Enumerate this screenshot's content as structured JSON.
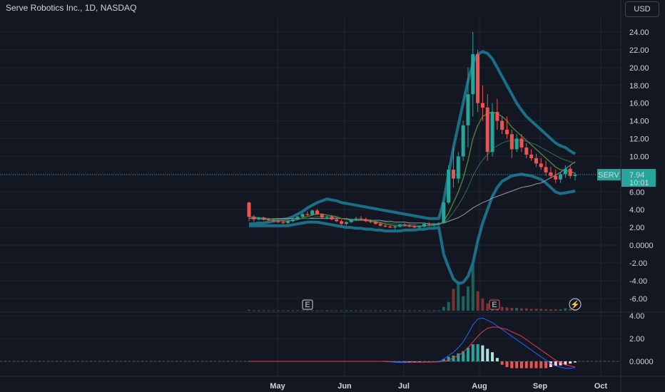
{
  "header": {
    "title": "Serve Robotics Inc., 1D, NASDAQ",
    "currency_label": "USD"
  },
  "price_tag": {
    "symbol": "SERV",
    "price": "7.94",
    "countdown": "10:01"
  },
  "colors": {
    "bg": "#131722",
    "grid": "#1f2433",
    "up": "#26a69a",
    "down": "#ef5350",
    "band": "#1a6f87",
    "ma1": "#4f7a3a",
    "ma2": "#2a6f60",
    "ma3": "#9598a1",
    "macd": "#2962ff",
    "signal": "#f23645"
  },
  "markers": [
    "E",
    "E",
    "⚡"
  ],
  "chart_data": [
    {
      "type": "candlestick",
      "title": "Serve Robotics Inc., 1D, NASDAQ",
      "y_ticks": [
        "24.00",
        "22.00",
        "20.00",
        "18.00",
        "16.00",
        "14.00",
        "12.00",
        "10.00",
        "8.00",
        "6.00",
        "4.00",
        "2.00",
        "0.0000",
        "-2.00",
        "-4.00",
        "-6.00"
      ],
      "x_ticks": [
        "May",
        "Jun",
        "Jul",
        "Aug",
        "Sep",
        "Oct"
      ],
      "ylim": [
        -7,
        25
      ],
      "last_price": 7.94,
      "candles": [
        [
          4.8,
          4.9,
          2.7,
          3.2
        ],
        [
          3.2,
          3.4,
          2.6,
          2.9
        ],
        [
          2.9,
          3.2,
          2.8,
          3.1
        ],
        [
          3.1,
          3.2,
          2.8,
          2.9
        ],
        [
          2.9,
          3.1,
          2.7,
          2.8
        ],
        [
          2.8,
          3.0,
          2.6,
          2.7
        ],
        [
          2.7,
          2.9,
          2.5,
          2.6
        ],
        [
          2.6,
          2.8,
          2.4,
          2.5
        ],
        [
          2.5,
          2.8,
          2.4,
          2.7
        ],
        [
          2.7,
          3.0,
          2.6,
          2.9
        ],
        [
          2.9,
          3.3,
          2.8,
          3.2
        ],
        [
          3.2,
          3.6,
          3.1,
          3.5
        ],
        [
          3.5,
          3.8,
          3.3,
          3.4
        ],
        [
          3.4,
          4.0,
          3.3,
          3.9
        ],
        [
          3.9,
          4.1,
          3.4,
          3.5
        ],
        [
          3.5,
          3.6,
          3.0,
          3.1
        ],
        [
          3.1,
          3.3,
          2.9,
          3.2
        ],
        [
          3.2,
          3.4,
          2.8,
          2.9
        ],
        [
          2.9,
          3.1,
          2.6,
          2.7
        ],
        [
          2.7,
          2.9,
          2.2,
          2.4
        ],
        [
          2.4,
          2.7,
          2.2,
          2.6
        ],
        [
          2.6,
          3.0,
          2.5,
          2.9
        ],
        [
          2.9,
          3.2,
          2.7,
          3.0
        ],
        [
          3.0,
          3.3,
          2.8,
          2.9
        ],
        [
          2.9,
          3.1,
          2.6,
          2.7
        ],
        [
          2.7,
          2.9,
          2.5,
          2.6
        ],
        [
          2.6,
          2.8,
          2.3,
          2.4
        ],
        [
          2.4,
          2.6,
          2.1,
          2.2
        ],
        [
          2.2,
          2.4,
          2.0,
          2.1
        ],
        [
          2.1,
          2.3,
          1.9,
          2.0
        ],
        [
          2.0,
          2.2,
          1.8,
          2.1
        ],
        [
          2.1,
          2.4,
          2.0,
          2.3
        ],
        [
          2.3,
          2.5,
          2.1,
          2.2
        ],
        [
          2.2,
          2.4,
          2.0,
          2.1
        ],
        [
          2.1,
          2.3,
          1.9,
          2.0
        ],
        [
          2.0,
          2.2,
          1.8,
          2.1
        ],
        [
          2.1,
          2.5,
          2.0,
          2.4
        ],
        [
          2.4,
          2.6,
          2.2,
          2.3
        ],
        [
          2.3,
          2.5,
          2.1,
          2.4
        ],
        [
          2.4,
          2.6,
          2.2,
          2.5
        ],
        [
          2.5,
          5.0,
          2.4,
          4.8
        ],
        [
          4.8,
          9.0,
          4.6,
          8.5
        ],
        [
          8.5,
          11.0,
          6.5,
          7.5
        ],
        [
          7.5,
          10.5,
          7.0,
          10.0
        ],
        [
          10.0,
          14.0,
          9.5,
          13.5
        ],
        [
          13.5,
          20.0,
          11.0,
          17.0
        ],
        [
          17.0,
          24.0,
          14.5,
          21.5
        ],
        [
          21.5,
          22.0,
          15.0,
          16.0
        ],
        [
          16.0,
          18.0,
          14.0,
          15.5
        ],
        [
          15.5,
          17.0,
          9.5,
          10.5
        ],
        [
          10.5,
          16.0,
          10.0,
          15.0
        ],
        [
          15.0,
          16.5,
          13.0,
          14.0
        ],
        [
          14.0,
          14.5,
          12.5,
          13.0
        ],
        [
          13.0,
          14.5,
          12.0,
          12.5
        ],
        [
          12.5,
          13.0,
          9.8,
          10.8
        ],
        [
          10.8,
          12.5,
          10.5,
          12.0
        ],
        [
          12.0,
          12.5,
          10.5,
          11.0
        ],
        [
          11.0,
          11.5,
          9.8,
          10.2
        ],
        [
          10.2,
          10.8,
          9.5,
          9.8
        ],
        [
          9.8,
          10.3,
          8.8,
          9.2
        ],
        [
          9.2,
          9.8,
          8.5,
          8.8
        ],
        [
          8.8,
          9.5,
          7.8,
          8.2
        ],
        [
          8.2,
          8.8,
          7.5,
          7.8
        ],
        [
          7.8,
          8.5,
          7.0,
          7.4
        ],
        [
          7.4,
          8.2,
          7.0,
          8.0
        ],
        [
          8.0,
          9.0,
          7.6,
          8.6
        ],
        [
          8.6,
          9.0,
          7.5,
          7.8
        ],
        [
          7.8,
          8.2,
          7.3,
          7.94
        ]
      ],
      "volume": [
        2,
        1,
        1,
        1,
        1,
        1,
        1,
        1,
        1,
        1,
        1,
        1,
        1,
        1,
        1,
        1,
        1,
        1,
        1,
        1,
        1,
        1,
        1,
        1,
        1,
        1,
        1,
        1,
        1,
        1,
        1,
        1,
        1,
        1,
        1,
        1,
        1,
        1,
        1,
        1,
        8,
        18,
        45,
        60,
        30,
        50,
        95,
        40,
        25,
        15,
        12,
        10,
        8,
        7,
        6,
        6,
        5,
        5,
        4,
        4,
        4,
        3,
        3,
        3,
        3,
        5,
        4,
        3
      ],
      "bands": {
        "upper": [
          2.4,
          2.4,
          2.5,
          2.5,
          2.6,
          2.7,
          2.8,
          2.9,
          3.0,
          3.2,
          3.5,
          3.8,
          4.2,
          4.5,
          4.8,
          5.0,
          5.2,
          5.1,
          5.0,
          4.8,
          4.7,
          4.6,
          4.5,
          4.4,
          4.3,
          4.2,
          4.1,
          4.0,
          3.9,
          3.8,
          3.7,
          3.6,
          3.5,
          3.4,
          3.3,
          3.2,
          3.1,
          3.0,
          3.0,
          3.0,
          5.0,
          8.0,
          11.0,
          13.5,
          16.0,
          18.5,
          20.5,
          21.5,
          21.8,
          21.6,
          21.0,
          20.0,
          19.0,
          18.0,
          17.0,
          16.0,
          15.2,
          14.5,
          14.0,
          13.5,
          13.0,
          12.5,
          12.0,
          11.5,
          11.2,
          11.0,
          10.6,
          10.3
        ],
        "lower": [
          2.2,
          2.2,
          2.2,
          2.2,
          2.2,
          2.2,
          2.2,
          2.2,
          2.2,
          2.3,
          2.4,
          2.5,
          2.6,
          2.6,
          2.6,
          2.5,
          2.4,
          2.3,
          2.2,
          2.1,
          2.0,
          2.0,
          1.9,
          1.9,
          1.8,
          1.8,
          1.7,
          1.7,
          1.6,
          1.6,
          1.6,
          1.6,
          1.7,
          1.7,
          1.7,
          1.8,
          1.8,
          1.9,
          1.9,
          2.0,
          -1.0,
          -2.5,
          -3.8,
          -4.3,
          -4.2,
          -3.5,
          -2.0,
          0.5,
          2.5,
          4.0,
          5.5,
          6.5,
          7.2,
          7.5,
          7.8,
          7.9,
          8.0,
          7.9,
          7.8,
          7.6,
          7.4,
          7.0,
          6.5,
          6.0,
          5.8,
          5.9,
          6.0,
          6.1
        ]
      },
      "ma_fast": [
        3.2,
        3.1,
        3.0,
        2.9,
        2.9,
        2.9,
        2.8,
        2.7,
        2.7,
        2.8,
        2.9,
        3.1,
        3.2,
        3.4,
        3.5,
        3.5,
        3.4,
        3.3,
        3.2,
        3.0,
        2.9,
        2.8,
        2.8,
        2.8,
        2.8,
        2.7,
        2.6,
        2.5,
        2.4,
        2.3,
        2.2,
        2.2,
        2.2,
        2.2,
        2.1,
        2.1,
        2.2,
        2.2,
        2.3,
        2.3,
        2.7,
        3.6,
        4.8,
        6.0,
        7.5,
        9.5,
        12.0,
        13.5,
        14.5,
        14.8,
        15.0,
        14.8,
        14.5,
        14.0,
        13.3,
        12.8,
        12.3,
        11.8,
        11.3,
        10.8,
        10.3,
        9.8,
        9.3,
        8.8,
        8.5,
        8.4,
        8.3,
        8.1
      ],
      "ma_mid": [
        3.2,
        3.2,
        3.1,
        3.1,
        3.0,
        3.0,
        2.9,
        2.9,
        2.8,
        2.8,
        2.9,
        3.0,
        3.0,
        3.1,
        3.2,
        3.2,
        3.2,
        3.2,
        3.1,
        3.0,
        2.9,
        2.9,
        2.8,
        2.8,
        2.8,
        2.7,
        2.7,
        2.6,
        2.6,
        2.5,
        2.4,
        2.4,
        2.3,
        2.3,
        2.3,
        2.2,
        2.2,
        2.2,
        2.2,
        2.3,
        2.5,
        3.0,
        3.7,
        4.5,
        5.4,
        6.5,
        7.8,
        8.8,
        9.6,
        10.2,
        10.8,
        11.2,
        11.5,
        11.7,
        11.8,
        11.8,
        11.8,
        11.7,
        11.5,
        11.3,
        11.0,
        10.7,
        10.4,
        10.1,
        9.8,
        9.6,
        9.4,
        9.2
      ],
      "ma_slow": [
        3.0,
        3.0,
        3.0,
        3.0,
        3.0,
        3.0,
        3.0,
        3.0,
        3.0,
        3.0,
        3.0,
        3.0,
        3.0,
        3.0,
        3.0,
        3.0,
        3.0,
        3.0,
        3.0,
        3.0,
        3.0,
        2.9,
        2.9,
        2.9,
        2.9,
        2.8,
        2.8,
        2.8,
        2.7,
        2.7,
        2.6,
        2.6,
        2.6,
        2.5,
        2.5,
        2.5,
        2.5,
        2.4,
        2.4,
        2.4,
        2.5,
        2.7,
        2.9,
        3.1,
        3.4,
        3.8,
        4.2,
        4.5,
        4.8,
        5.0,
        5.3,
        5.5,
        5.7,
        5.9,
        6.1,
        6.3,
        6.5,
        6.6,
        6.7,
        6.9,
        7.0,
        7.3,
        7.6,
        7.9,
        8.2,
        8.6,
        9.0,
        9.4
      ]
    },
    {
      "type": "macd",
      "y_ticks": [
        "4.00",
        "2.00",
        "0.0000"
      ],
      "ylim": [
        -1.2,
        4.6
      ],
      "macd": [
        0,
        0,
        0,
        0,
        0,
        0,
        0,
        0,
        0,
        0,
        0,
        0,
        0,
        0,
        0,
        0,
        0,
        0,
        0,
        0,
        0,
        0,
        0,
        0,
        0,
        0,
        0,
        0,
        -0.02,
        -0.05,
        -0.08,
        -0.1,
        -0.1,
        -0.09,
        -0.08,
        -0.06,
        -0.05,
        -0.04,
        -0.03,
        -0.02,
        0.2,
        0.5,
        0.8,
        1.2,
        1.7,
        2.4,
        3.2,
        3.7,
        3.8,
        3.6,
        3.4,
        3.1,
        2.8,
        2.5,
        2.2,
        1.9,
        1.6,
        1.3,
        1.0,
        0.7,
        0.4,
        0.1,
        -0.2,
        -0.4,
        -0.5,
        -0.6,
        -0.6,
        -0.55
      ],
      "signal": [
        0,
        0,
        0,
        0,
        0,
        0,
        0,
        0,
        0,
        0,
        0,
        0,
        0,
        0,
        0,
        0,
        0,
        0,
        0,
        0,
        0,
        0,
        0,
        0,
        0,
        0,
        0,
        0,
        0,
        -0.01,
        -0.02,
        -0.04,
        -0.05,
        -0.06,
        -0.07,
        -0.07,
        -0.07,
        -0.06,
        -0.06,
        -0.05,
        0,
        0.1,
        0.3,
        0.5,
        0.8,
        1.2,
        1.7,
        2.2,
        2.6,
        2.9,
        3.0,
        3.0,
        2.9,
        2.8,
        2.6,
        2.4,
        2.2,
        1.9,
        1.6,
        1.3,
        1.0,
        0.7,
        0.4,
        0.1,
        -0.1,
        -0.3,
        -0.4,
        -0.5
      ],
      "hist": [
        0,
        0,
        0,
        0,
        0,
        0,
        0,
        0,
        0,
        0,
        0,
        0,
        0,
        0,
        0,
        0,
        0,
        0,
        0,
        0,
        0,
        0,
        0,
        0,
        0,
        0,
        0,
        0,
        -0.04,
        -0.05,
        -0.06,
        -0.07,
        -0.06,
        -0.05,
        -0.04,
        -0.03,
        -0.03,
        -0.02,
        -0.02,
        -0.02,
        0.2,
        0.4,
        0.5,
        0.7,
        0.9,
        1.2,
        1.5,
        1.5,
        1.4,
        1.1,
        0.8,
        0.3,
        -0.3,
        -0.5,
        -0.6,
        -0.6,
        -0.6,
        -0.6,
        -0.6,
        -0.6,
        -0.6,
        -0.6,
        -0.5,
        -0.4,
        -0.35,
        -0.3,
        -0.2,
        -0.1
      ]
    }
  ]
}
